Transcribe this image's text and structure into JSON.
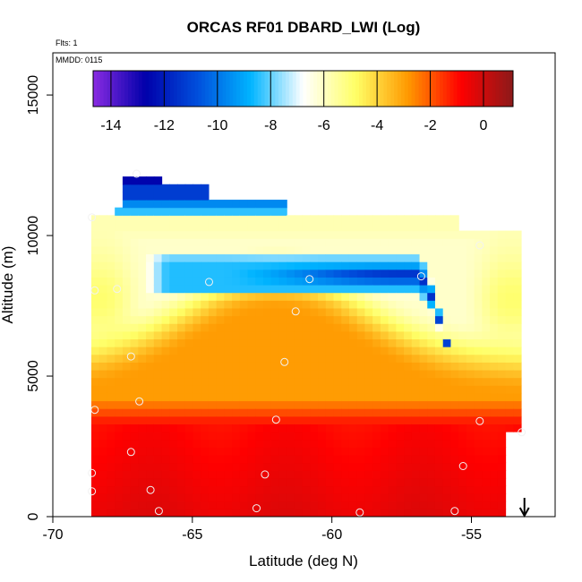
{
  "chart_data": {
    "type": "heatmap",
    "title": "ORCAS RF01 DBARD_LWI (Log)",
    "subtitle_flights": "Flts: 1",
    "subtitle_date": "MMDD: 0115",
    "xlabel": "Latitude (deg N)",
    "ylabel": "Altitude (m)",
    "xlim": [
      -70,
      -52
    ],
    "ylim": [
      0,
      16500
    ],
    "x_ticks": [
      -70,
      -65,
      -60,
      -55
    ],
    "x_tick_labels": [
      "-70",
      "-65",
      "-60",
      "-55"
    ],
    "y_ticks": [
      0,
      5000,
      10000,
      15000
    ],
    "y_tick_labels": [
      "0",
      "5000",
      "10000",
      "15000"
    ],
    "colorbar": {
      "range": [
        -14.67,
        1.11
      ],
      "ticks": [
        -14,
        -12,
        -10,
        -8,
        -6,
        -4,
        -2,
        0
      ],
      "tick_labels": [
        "-14",
        "-12",
        "-10",
        "-8",
        "-6",
        "-4",
        "-2",
        "0"
      ],
      "colors": [
        "#8a2be2",
        "#0000aa",
        "#0050dd",
        "#00b4ff",
        "#ffffff",
        "#ffff66",
        "#ff9900",
        "#ff0000",
        "#8b1a1a"
      ]
    },
    "field": {
      "description_value_units": "log10 of DBARD_LWI",
      "background_value": -2.5,
      "polygon_lat_alt": [
        [
          -68.7,
          0
        ],
        [
          -53.7,
          0
        ],
        [
          -53.7,
          3000
        ],
        [
          -53.2,
          3000
        ],
        [
          -53.2,
          10300
        ],
        [
          -55.5,
          10300
        ],
        [
          -55.5,
          10600
        ],
        [
          -61.5,
          10800
        ],
        [
          -61.5,
          11200
        ],
        [
          -64.5,
          11200
        ],
        [
          -64.5,
          11700
        ],
        [
          -67.5,
          12200
        ],
        [
          -67.5,
          10900
        ],
        [
          -68.7,
          10700
        ]
      ]
    },
    "regions": [
      {
        "name": "lower layer",
        "alt_range": [
          0,
          3500
        ],
        "value": -1.0
      },
      {
        "name": "middle layer",
        "alt_range": [
          3500,
          7000
        ],
        "value": -3.0
      },
      {
        "name": "upper shell",
        "alt_range": [
          7000,
          10300
        ],
        "value": -6.0
      },
      {
        "name": "minimum core",
        "lat_range": [
          -57.5,
          -56.5
        ],
        "alt": 8300,
        "value": -12.0
      },
      {
        "name": "top strip",
        "alt_range": [
          10600,
          12000
        ],
        "value": -10.5
      }
    ],
    "samples": [
      {
        "x": -66.2,
        "y": 200
      },
      {
        "x": -62.7,
        "y": 300
      },
      {
        "x": -59.0,
        "y": 150
      },
      {
        "x": -55.6,
        "y": 200
      },
      {
        "x": -66.5,
        "y": 950
      },
      {
        "x": -68.6,
        "y": 900
      },
      {
        "x": -68.6,
        "y": 1550
      },
      {
        "x": -62.4,
        "y": 1500
      },
      {
        "x": -55.3,
        "y": 1800
      },
      {
        "x": -67.2,
        "y": 2300
      },
      {
        "x": -68.5,
        "y": 3800
      },
      {
        "x": -62.0,
        "y": 3450
      },
      {
        "x": -54.7,
        "y": 3400
      },
      {
        "x": -66.9,
        "y": 4100
      },
      {
        "x": -53.2,
        "y": 3000
      },
      {
        "x": -61.7,
        "y": 5500
      },
      {
        "x": -67.2,
        "y": 5700
      },
      {
        "x": -61.3,
        "y": 7300
      },
      {
        "x": -68.5,
        "y": 8050
      },
      {
        "x": -67.7,
        "y": 8100
      },
      {
        "x": -64.4,
        "y": 8350
      },
      {
        "x": -60.8,
        "y": 8450
      },
      {
        "x": -56.8,
        "y": 8550
      },
      {
        "x": -54.7,
        "y": 9650
      },
      {
        "x": -68.6,
        "y": 10650
      },
      {
        "x": -67.0,
        "y": 12200
      }
    ],
    "flight_direction_marker": {
      "lat": -53.1,
      "symbol": "down-arrow"
    }
  }
}
